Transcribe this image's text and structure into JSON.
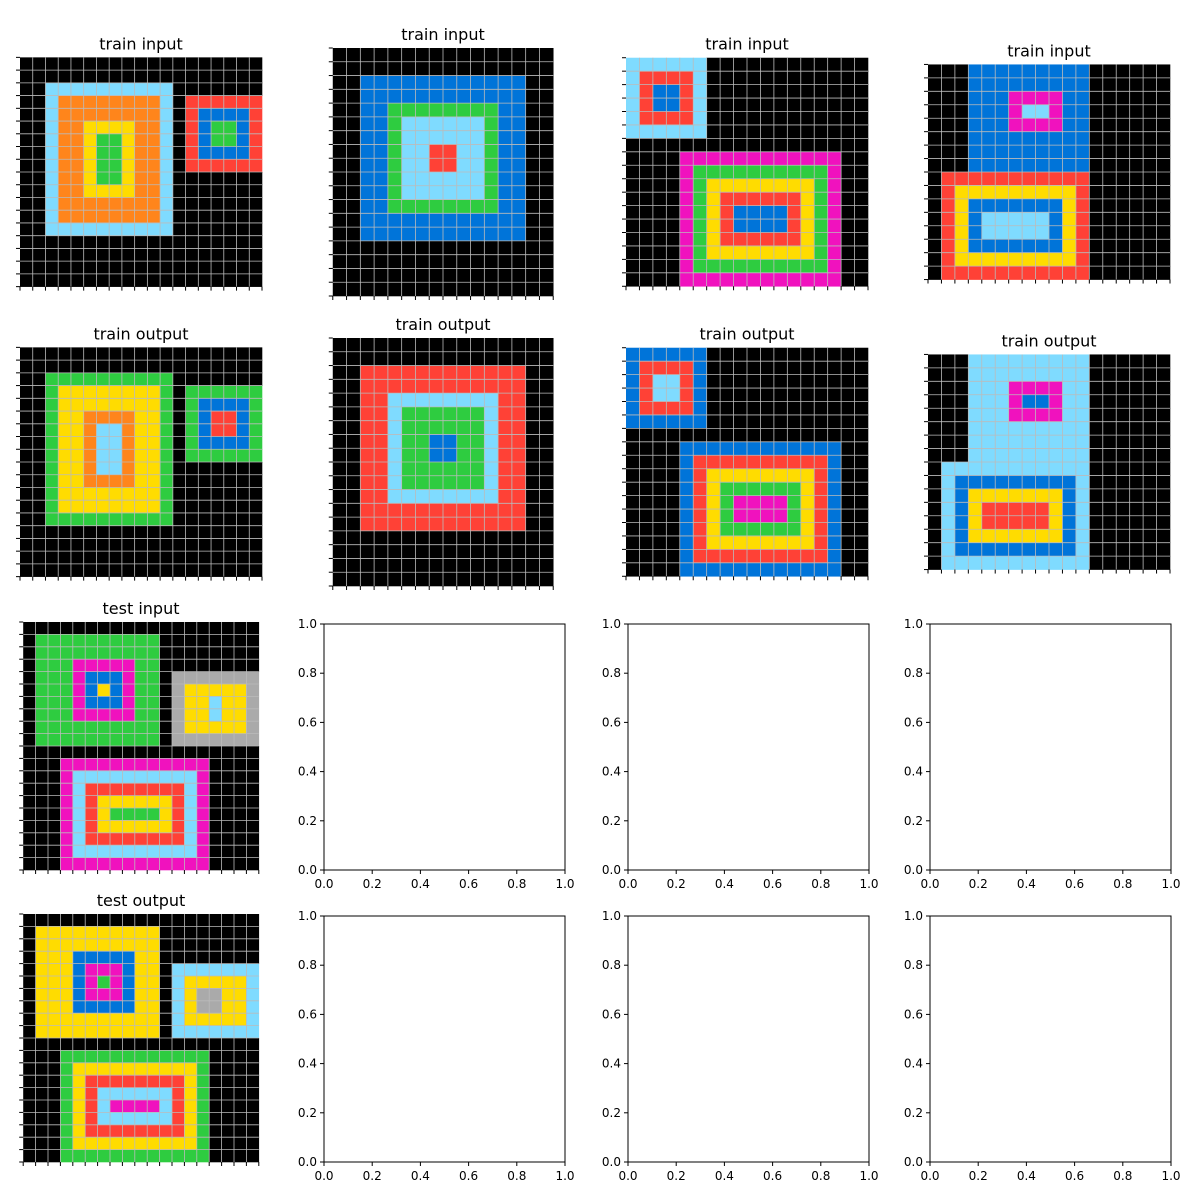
{
  "palette": {
    "0": "#000000",
    "1": "#0074D9",
    "2": "#FF4136",
    "3": "#2ECC40",
    "4": "#FFDC00",
    "5": "#AAAAAA",
    "6": "#F012BE",
    "7": "#FF851B",
    "8": "#7FDBFF",
    "9": "#870C25"
  },
  "grid_line_color": "#bbbbbb",
  "panels": [
    {
      "title": "train input",
      "type": "grid",
      "grid": [
        "0000000000000000000",
        "0000000000000000000",
        "0088888888880000000",
        "0087777777780222222",
        "0087777777780211112",
        "0087744447780213312",
        "0087743347780213312",
        "0087743347780211112",
        "0087743347780222222",
        "0087743347780000000",
        "0087744447780000000",
        "0087777777780000000",
        "0087777777780000000",
        "0088888888880000000",
        "0000000000000000000",
        "0000000000000000000",
        "0000000000000000000",
        "0000000000000000000"
      ]
    },
    {
      "title": "train input",
      "type": "grid",
      "grid": [
        "0000000000000000",
        "0000000000000000",
        "0011111111111100",
        "0011111111111100",
        "0011333333331100",
        "0011388888831100",
        "0011388888831100",
        "0011388228831100",
        "0011388228831100",
        "0011388888831100",
        "0011388888831100",
        "0011333333331100",
        "0011111111111100",
        "0011111111111100",
        "0000000000000000",
        "0000000000000000",
        "0000000000000000",
        "0000000000000000"
      ]
    },
    {
      "title": "train input",
      "type": "grid",
      "grid": [
        "888888000000000000",
        "822228000000000000",
        "821128000000000000",
        "821128000000000000",
        "822228000000000000",
        "888888000000000000",
        "000000000000000000",
        "000066666666666600",
        "000063333333333600",
        "000063444444443600",
        "000063422222243600",
        "000063421111243600",
        "000063421111243600",
        "000063422222243600",
        "000063444444443600",
        "000063333333333600",
        "000066666666666600"
      ]
    },
    {
      "title": "train input",
      "type": "grid",
      "grid": [
        "000111111111000000",
        "000111111111000000",
        "000111666611000000",
        "000111688611000000",
        "000111666611000000",
        "000111111111000000",
        "000111111111000000",
        "000111111111000000",
        "022222222222000000",
        "024444444442000000",
        "024111111142000000",
        "024188888142000000",
        "024188888142000000",
        "024111111142000000",
        "024444444442000000",
        "022222222222000000"
      ]
    },
    {
      "title": "train output",
      "type": "grid",
      "grid": [
        "0000000000000000000",
        "0000000000000000000",
        "0033333333330000000",
        "0034444444430333333",
        "0034444444430311113",
        "0034477774430312213",
        "0034478874430312213",
        "0034478874430311113",
        "0034478874430333333",
        "0034478874430000000",
        "0034477774430000000",
        "0034444444430000000",
        "0034444444430000000",
        "0033333333330000000",
        "0000000000000000000",
        "0000000000000000000",
        "0000000000000000000",
        "0000000000000000000"
      ]
    },
    {
      "title": "train output",
      "type": "grid",
      "grid": [
        "0000000000000000",
        "0000000000000000",
        "0022222222222200",
        "0022222222222200",
        "0022888888882200",
        "0022833333382200",
        "0022833333382200",
        "0022833113382200",
        "0022833113382200",
        "0022833333382200",
        "0022833333382200",
        "0022888888882200",
        "0022222222222200",
        "0022222222222200",
        "0000000000000000",
        "0000000000000000",
        "0000000000000000",
        "0000000000000000"
      ]
    },
    {
      "title": "train output",
      "type": "grid",
      "grid": [
        "111111000000000000",
        "122221000000000000",
        "128821000000000000",
        "128821000000000000",
        "122221000000000000",
        "111111000000000000",
        "000000000000000000",
        "000011111111111100",
        "000012222222222100",
        "000012444444442100",
        "000012433333342100",
        "000012436666342100",
        "000012436666342100",
        "000012433333342100",
        "000012444444442100",
        "000012222222222100",
        "000011111111111100"
      ]
    },
    {
      "title": "train output",
      "type": "grid",
      "grid": [
        "000888888888000000",
        "000888888888000000",
        "000888666688000000",
        "000888611688000000",
        "000888666688000000",
        "000888888888000000",
        "000888888888000000",
        "000888888888000000",
        "088888888888000000",
        "081111111118000000",
        "081444444418000000",
        "081422222418000000",
        "081422222418000000",
        "081444444418000000",
        "081111111118000000",
        "088888888888000000"
      ]
    },
    {
      "title": "test input",
      "type": "grid",
      "grid": [
        "0000000000000000000",
        "0333333333300000000",
        "0333333333300000000",
        "0333666663300000000",
        "0333611163305555555",
        "0333614163305444445",
        "0333611163305448445",
        "0333666663305448445",
        "0333333333305444445",
        "0333333333305555555",
        "0000000000000000000",
        "0006666666666660000",
        "0006888888888860000",
        "0006822222222860000",
        "0006824444442860000",
        "0006824333342860000",
        "0006824444442860000",
        "0006822222222860000",
        "0006888888888860000",
        "0006666666666660000"
      ]
    },
    {
      "title": "",
      "type": "empty"
    },
    {
      "title": "",
      "type": "empty"
    },
    {
      "title": "",
      "type": "empty"
    },
    {
      "title": "test output",
      "type": "grid",
      "grid": [
        "0000000000000000000",
        "0444444444400000000",
        "0444444444400000000",
        "0444111114400000000",
        "0444166614408888888",
        "0444163614408444448",
        "0444166614408455448",
        "0444111114408455448",
        "0444444444408444448",
        "0444444444408888888",
        "0000000000000000000",
        "0003333333333330000",
        "0003444444444430000",
        "0003422222222430000",
        "0003428888882430000",
        "0003428666682430000",
        "0003428888882430000",
        "0003422222222430000",
        "0003444444444430000",
        "0003333333333330000"
      ]
    },
    {
      "title": "",
      "type": "empty"
    },
    {
      "title": "",
      "type": "empty"
    },
    {
      "title": "",
      "type": "empty"
    }
  ],
  "empty_axis": {
    "ticks": [
      "0.0",
      "0.2",
      "0.4",
      "0.6",
      "0.8",
      "1.0"
    ]
  }
}
